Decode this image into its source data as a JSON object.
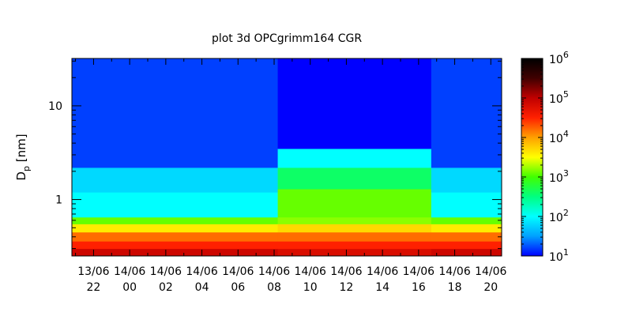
{
  "chart_data": {
    "type": "heatmap",
    "title": "plot 3d OPCgrimm164 CGR",
    "xlabel": "",
    "ylabel": {
      "main": "D",
      "sub": "p",
      "rest": " [nm]"
    },
    "y_scale": "log",
    "ylim": [
      0.25,
      32
    ],
    "y_ticks": [
      {
        "value": 1,
        "label": "1"
      },
      {
        "value": 10,
        "label": "10"
      }
    ],
    "x_axis": "time",
    "xlim_hours": [
      20.8,
      44.6
    ],
    "x_ticks": [
      {
        "hour": 22,
        "date": "13/06",
        "time": "22"
      },
      {
        "hour": 24,
        "date": "14/06",
        "time": "00"
      },
      {
        "hour": 26,
        "date": "14/06",
        "time": "02"
      },
      {
        "hour": 28,
        "date": "14/06",
        "time": "04"
      },
      {
        "hour": 30,
        "date": "14/06",
        "time": "06"
      },
      {
        "hour": 32,
        "date": "14/06",
        "time": "08"
      },
      {
        "hour": 34,
        "date": "14/06",
        "time": "10"
      },
      {
        "hour": 36,
        "date": "14/06",
        "time": "12"
      },
      {
        "hour": 38,
        "date": "14/06",
        "time": "14"
      },
      {
        "hour": 40,
        "date": "14/06",
        "time": "16"
      },
      {
        "hour": 42,
        "date": "14/06",
        "time": "18"
      },
      {
        "hour": 44,
        "date": "14/06",
        "time": "20"
      }
    ],
    "colorbar": {
      "scale": "log",
      "range": [
        10,
        1000000
      ],
      "ticks": [
        {
          "mant": "10",
          "exp": "1"
        },
        {
          "mant": "10",
          "exp": "2"
        },
        {
          "mant": "10",
          "exp": "3"
        },
        {
          "mant": "10",
          "exp": "4"
        },
        {
          "mant": "10",
          "exp": "5"
        },
        {
          "mant": "10",
          "exp": "6"
        }
      ],
      "colors": [
        "#0000ff",
        "#00a0ff",
        "#00ffff",
        "#00ff80",
        "#40ff00",
        "#ffff00",
        "#ffa000",
        "#ff2000",
        "#c00000",
        "#400000",
        "#000000"
      ]
    },
    "regimes": [
      {
        "period": "13/06 20:45 - 14/06 08:15",
        "start_hour": 20.8,
        "end_hour": 32.2,
        "boundaries_nm": [
          0.25,
          0.3,
          0.36,
          0.45,
          0.55,
          0.65,
          1.2,
          2.2,
          32
        ],
        "log10_conc": [
          4.9,
          4.5,
          4.2,
          3.6,
          3.1,
          2.0,
          1.8,
          1.2
        ]
      },
      {
        "period": "14/06 08:15 - 14/06 16:45",
        "start_hour": 32.2,
        "end_hour": 40.7,
        "boundaries_nm": [
          0.25,
          0.3,
          0.36,
          0.45,
          0.55,
          0.65,
          1.3,
          2.2,
          3.5,
          32
        ],
        "log10_conc": [
          4.8,
          4.5,
          4.2,
          3.7,
          3.2,
          3.1,
          2.6,
          2.0,
          1.0
        ]
      },
      {
        "period": "14/06 16:45 - 14/06 20:35",
        "start_hour": 40.7,
        "end_hour": 44.6,
        "boundaries_nm": [
          0.25,
          0.3,
          0.36,
          0.45,
          0.55,
          0.65,
          1.2,
          2.2,
          32
        ],
        "log10_conc": [
          4.9,
          4.5,
          4.2,
          3.6,
          3.1,
          2.0,
          1.8,
          1.2
        ]
      }
    ]
  }
}
